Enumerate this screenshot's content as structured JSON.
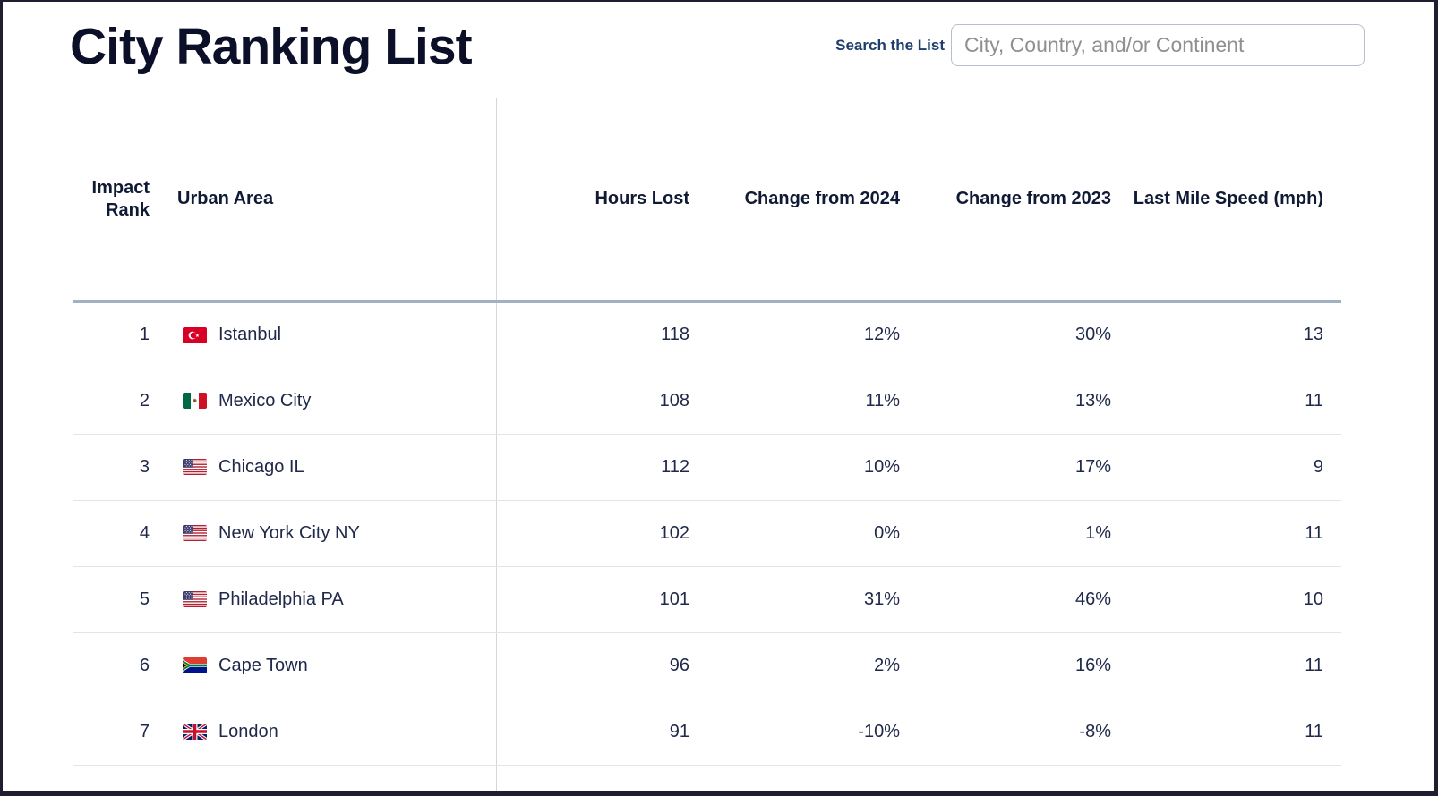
{
  "page": {
    "title": "City Ranking List"
  },
  "search": {
    "label": "Search the List",
    "placeholder": "City, Country, and/or Continent"
  },
  "table": {
    "columns": {
      "impact_rank": "Impact Rank",
      "urban_area": "Urban Area",
      "hours_lost": "Hours Lost",
      "change_2024": "Change from 2024",
      "change_2023": "Change from 2023",
      "last_mile_speed": "Last Mile Speed (mph)"
    },
    "rows": [
      {
        "rank": "1",
        "flag": "tr",
        "flag_name": "turkey-flag-icon",
        "city": "Istanbul",
        "hours_lost": "118",
        "change_2024": "12%",
        "change_2023": "30%",
        "last_mile_speed": "13"
      },
      {
        "rank": "2",
        "flag": "mx",
        "flag_name": "mexico-flag-icon",
        "city": "Mexico City",
        "hours_lost": "108",
        "change_2024": "11%",
        "change_2023": "13%",
        "last_mile_speed": "11"
      },
      {
        "rank": "3",
        "flag": "us",
        "flag_name": "usa-flag-icon",
        "city": "Chicago IL",
        "hours_lost": "112",
        "change_2024": "10%",
        "change_2023": "17%",
        "last_mile_speed": "9"
      },
      {
        "rank": "4",
        "flag": "us",
        "flag_name": "usa-flag-icon",
        "city": "New York City NY",
        "hours_lost": "102",
        "change_2024": "0%",
        "change_2023": "1%",
        "last_mile_speed": "11"
      },
      {
        "rank": "5",
        "flag": "us",
        "flag_name": "usa-flag-icon",
        "city": "Philadelphia PA",
        "hours_lost": "101",
        "change_2024": "31%",
        "change_2023": "46%",
        "last_mile_speed": "10"
      },
      {
        "rank": "6",
        "flag": "za",
        "flag_name": "south-africa-flag-icon",
        "city": "Cape Town",
        "hours_lost": "96",
        "change_2024": "2%",
        "change_2023": "16%",
        "last_mile_speed": "11"
      },
      {
        "rank": "7",
        "flag": "gb",
        "flag_name": "uk-flag-icon",
        "city": "London",
        "hours_lost": "91",
        "change_2024": "-10%",
        "change_2023": "-8%",
        "last_mile_speed": "11"
      }
    ]
  },
  "colors": {
    "title": "#0b0f28",
    "header_text": "#101a35",
    "body_text": "#20294a",
    "search_label": "#1d3d6e",
    "header_line": "#9fb1c2",
    "row_line": "#e4e4e4",
    "column_divider": "#d6d6d6",
    "input_border": "#b6c0cd",
    "frame": "#1e1e30"
  }
}
